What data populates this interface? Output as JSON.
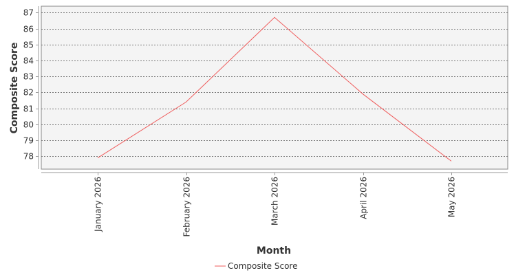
{
  "chart_data": {
    "type": "line",
    "title": "",
    "xlabel": "Month",
    "ylabel": "Composite Score",
    "categories": [
      "January 2026",
      "February 2026",
      "March 2026",
      "April 2026",
      "May 2026"
    ],
    "series": [
      {
        "name": "Composite Score",
        "values": [
          77.9,
          81.4,
          86.7,
          81.9,
          77.7
        ]
      }
    ],
    "yticks": [
      78,
      79,
      80,
      81,
      82,
      83,
      84,
      85,
      86,
      87
    ],
    "ylim": [
      77.2,
      87.4
    ],
    "grid": true,
    "legend_position": "bottom",
    "colors": {
      "line": "#ef5b5b",
      "plot_background": "#f4f4f4",
      "grid": "#777777",
      "border": "#888888"
    }
  }
}
